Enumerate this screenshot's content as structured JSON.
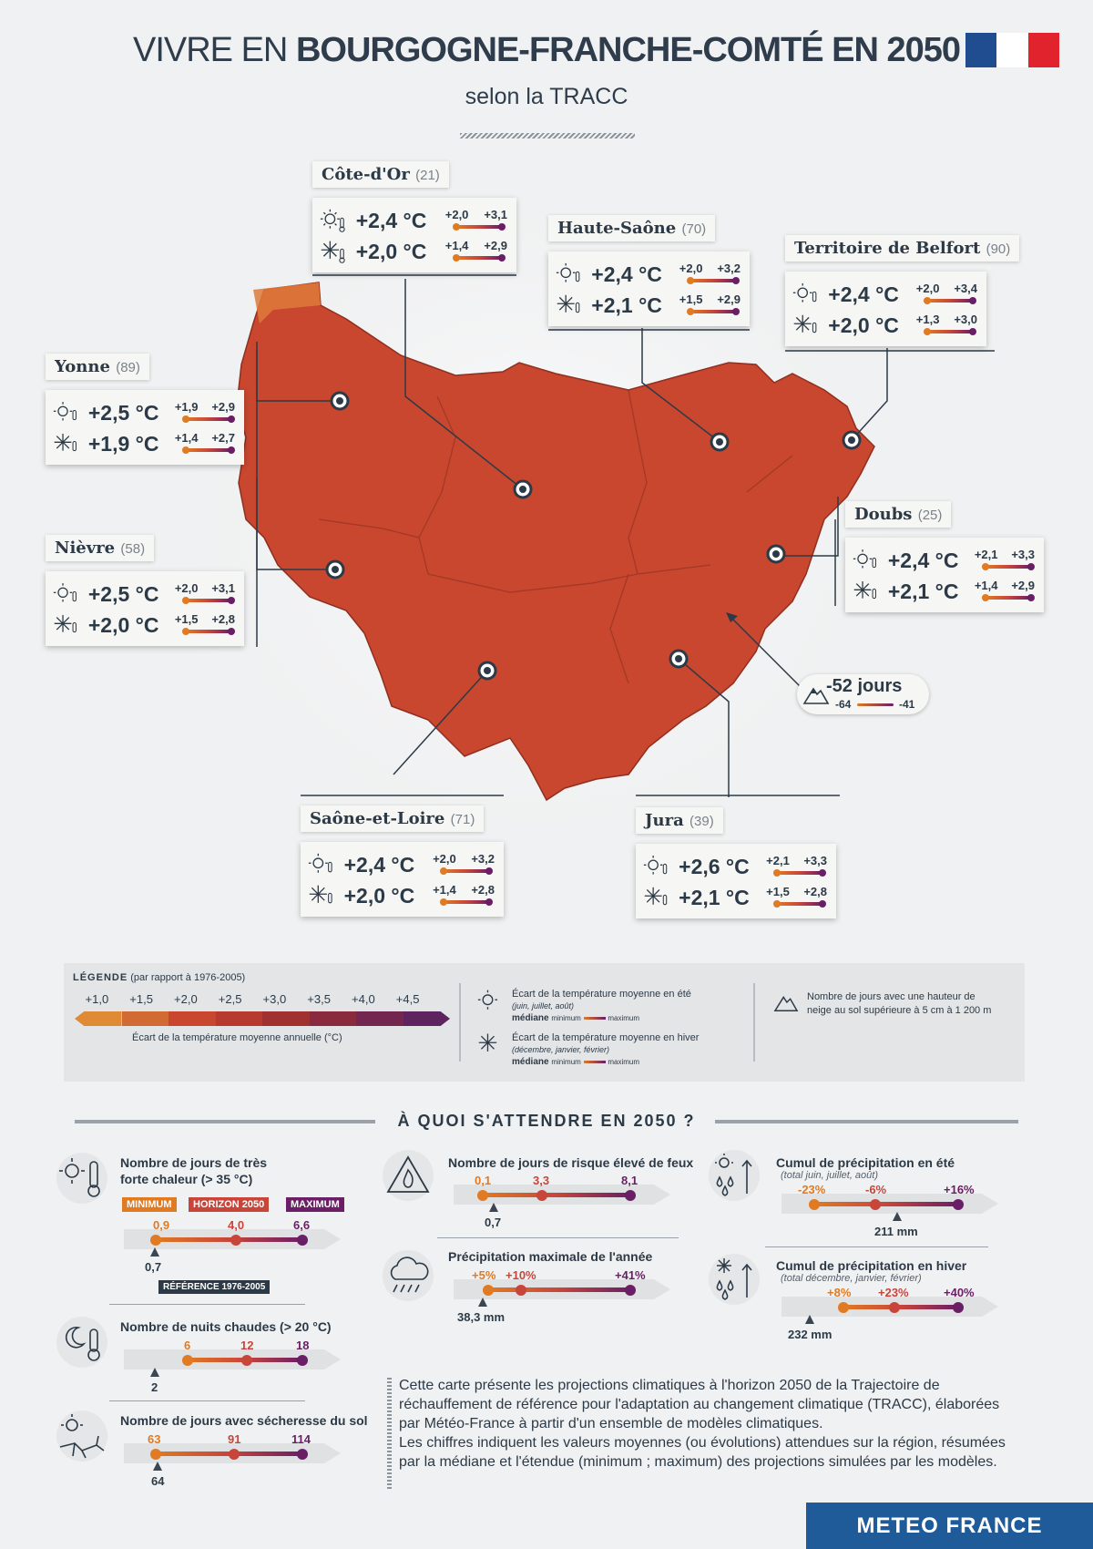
{
  "header": {
    "title_light": "VIVRE EN",
    "title_bold": "BOURGOGNE-FRANCHE-COMTÉ EN 2050",
    "subtitle": "selon la TRACC"
  },
  "colors": {
    "region": "#c8472e",
    "orange": "#e07a23",
    "red": "#c8453a",
    "purple": "#6a1e66",
    "dark": "#2c3a47",
    "brand": "#1f5b98"
  },
  "departments": [
    {
      "name": "Côte-d'Or",
      "code": "(21)",
      "summer": {
        "value": "+2,4 °C",
        "min": "+2,0",
        "max": "+3,1"
      },
      "winter": {
        "value": "+2,0 °C",
        "min": "+1,4",
        "max": "+2,9"
      }
    },
    {
      "name": "Haute-Saône",
      "code": "(70)",
      "summer": {
        "value": "+2,4 °C",
        "min": "+2,0",
        "max": "+3,2"
      },
      "winter": {
        "value": "+2,1 °C",
        "min": "+1,5",
        "max": "+2,9"
      }
    },
    {
      "name": "Territoire de Belfort",
      "code": "(90)",
      "summer": {
        "value": "+2,4 °C",
        "min": "+2,0",
        "max": "+3,4"
      },
      "winter": {
        "value": "+2,0 °C",
        "min": "+1,3",
        "max": "+3,0"
      }
    },
    {
      "name": "Yonne",
      "code": "(89)",
      "summer": {
        "value": "+2,5 °C",
        "min": "+1,9",
        "max": "+2,9"
      },
      "winter": {
        "value": "+1,9 °C",
        "min": "+1,4",
        "max": "+2,7"
      }
    },
    {
      "name": "Nièvre",
      "code": "(58)",
      "summer": {
        "value": "+2,5 °C",
        "min": "+2,0",
        "max": "+3,1"
      },
      "winter": {
        "value": "+2,0 °C",
        "min": "+1,5",
        "max": "+2,8"
      }
    },
    {
      "name": "Doubs",
      "code": "(25)",
      "summer": {
        "value": "+2,4 °C",
        "min": "+2,1",
        "max": "+3,3"
      },
      "winter": {
        "value": "+2,1 °C",
        "min": "+1,4",
        "max": "+2,9"
      }
    },
    {
      "name": "Saône-et-Loire",
      "code": "(71)",
      "summer": {
        "value": "+2,4 °C",
        "min": "+2,0",
        "max": "+3,2"
      },
      "winter": {
        "value": "+2,0 °C",
        "min": "+1,4",
        "max": "+2,8"
      }
    },
    {
      "name": "Jura",
      "code": "(39)",
      "summer": {
        "value": "+2,6 °C",
        "min": "+2,1",
        "max": "+3,3"
      },
      "winter": {
        "value": "+2,1 °C",
        "min": "+1,5",
        "max": "+2,8"
      }
    }
  ],
  "snow": {
    "value": "-52 jours",
    "min": "-64",
    "max": "-41"
  },
  "legend": {
    "title": "LÉGENDE",
    "title_note": "(par rapport à 1976-2005)",
    "scale_ticks": [
      "+1,0",
      "+1,5",
      "+2,0",
      "+2,5",
      "+3,0",
      "+3,5",
      "+4,0",
      "+4,5"
    ],
    "scale_colors": [
      "#e08a36",
      "#d26a34",
      "#c8472e",
      "#b63a2d",
      "#a13030",
      "#8a2a3d",
      "#73264f",
      "#5e2460"
    ],
    "scale_caption": "Écart de la température moyenne annuelle (°C)",
    "summer_label": "Écart de la température moyenne en été",
    "summer_months": "(juin, juillet, août)",
    "winter_label": "Écart de la température moyenne en hiver",
    "winter_months": "(décembre, janvier, février)",
    "mediane": "médiane",
    "minimum": "minimum",
    "maximum": "maximum",
    "snow_label_1": "Nombre de jours avec une hauteur de",
    "snow_label_2": "neige au sol supérieure à 5 cm à 1 200 m"
  },
  "section_title": "À QUOI S'ATTENDRE EN 2050 ?",
  "indicators": {
    "hot_days": {
      "title_1": "Nombre de jours de très",
      "title_2": "forte chaleur (> 35 °C)",
      "tag_min": "MINIMUM",
      "tag_h": "HORIZON 2050",
      "tag_max": "MAXIMUM",
      "min": "0,9",
      "med": "4,0",
      "max": "6,6",
      "ref": "0,7",
      "ref_tag": "RÉFÉRENCE 1976-2005"
    },
    "warm_nights": {
      "title": "Nombre de nuits chaudes (> 20 °C)",
      "min": "6",
      "med": "12",
      "max": "18",
      "ref": "2"
    },
    "drought": {
      "title": "Nombre de jours avec sécheresse du sol",
      "min": "63",
      "med": "91",
      "max": "114",
      "ref": "64"
    },
    "fire": {
      "title": "Nombre de jours de risque élevé de feux",
      "min": "0,1",
      "med": "3,3",
      "max": "8,1",
      "ref": "0,7"
    },
    "max_precip": {
      "title": "Précipitation maximale de l'année",
      "min": "+5%",
      "med": "+10%",
      "max": "+41%",
      "ref": "38,3 mm"
    },
    "summer_precip": {
      "title": "Cumul de précipitation en été",
      "sub": "(total juin, juillet, août)",
      "min": "-23%",
      "med": "-6%",
      "max": "+16%",
      "ref": "211 mm"
    },
    "winter_precip": {
      "title": "Cumul de précipitation en hiver",
      "sub": "(total décembre, janvier, février)",
      "min": "+8%",
      "med": "+23%",
      "max": "+40%",
      "ref": "232 mm"
    }
  },
  "paragraph": {
    "p1": "Cette carte présente les projections climatiques à l'horizon 2050 de la Trajectoire de réchauffement de référence pour l'adaptation au changement climatique (TRACC), élaborées par Météo-France à partir d'un ensemble de modèles climatiques.",
    "p2": "Les chiffres indiquent les valeurs moyennes (ou évolutions) attendues sur la région, résumées par la médiane et l'étendue (minimum ; maximum) des projections simulées par les modèles."
  },
  "footer": {
    "brand": "METEO FRANCE"
  }
}
